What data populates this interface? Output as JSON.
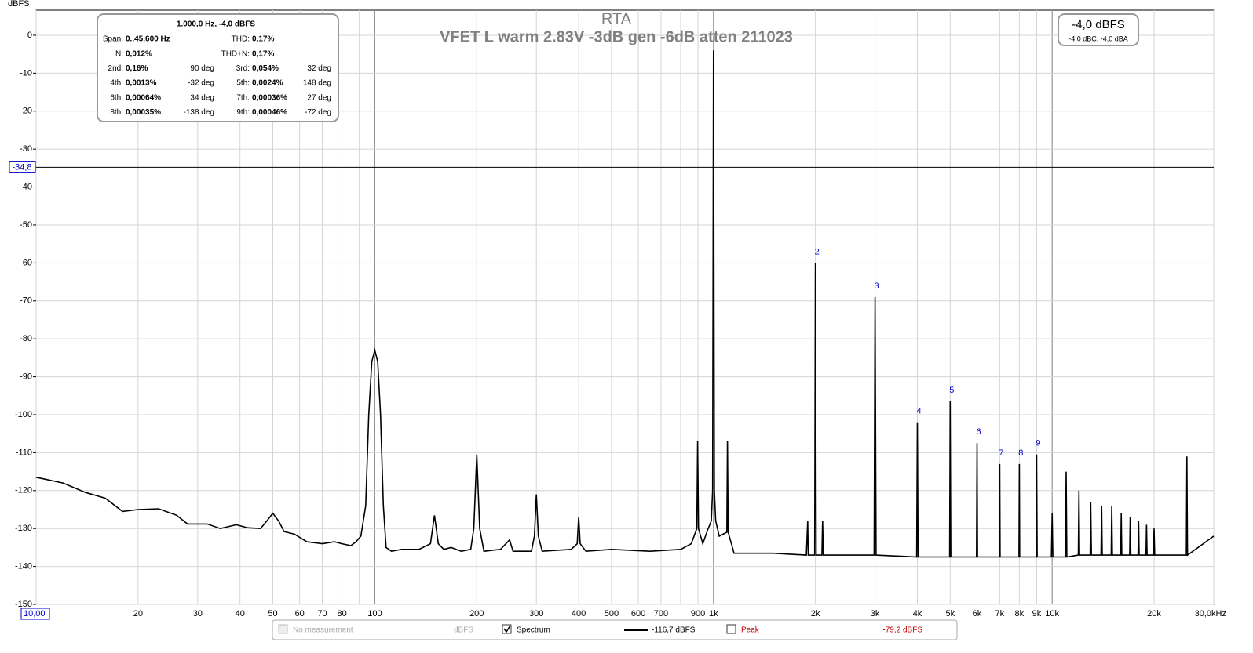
{
  "chart_data": {
    "type": "line",
    "title": "RTA",
    "subtitle": "VFET L warm 2.83V -3dB gen -6dB atten 211023",
    "y_label": "dBFS",
    "x_scale": "log",
    "xlim": [
      10,
      30000
    ],
    "ylim": [
      -150,
      6.6
    ],
    "xticks": [
      {
        "value": 10,
        "label": "10,00"
      },
      20,
      30,
      40,
      50,
      60,
      70,
      80,
      100,
      200,
      300,
      400,
      500,
      600,
      700,
      900,
      {
        "value": 1000,
        "label": "1k"
      },
      {
        "value": 2000,
        "label": "2k"
      },
      {
        "value": 3000,
        "label": "3k"
      },
      {
        "value": 4000,
        "label": "4k"
      },
      {
        "value": 5000,
        "label": "5k"
      },
      {
        "value": 6000,
        "label": "6k"
      },
      {
        "value": 7000,
        "label": "7k"
      },
      {
        "value": 8000,
        "label": "8k"
      },
      {
        "value": 9000,
        "label": "9k"
      },
      {
        "value": 10000,
        "label": "10k"
      },
      {
        "value": 20000,
        "label": "20k"
      },
      {
        "value": 30000,
        "label": "30,0kHz"
      }
    ],
    "xticks_minor": [
      90,
      800
    ],
    "decade_lines": [
      100,
      1000,
      10000
    ],
    "yticks": [
      0,
      -10,
      -20,
      -30,
      -40,
      -50,
      -60,
      -70,
      -80,
      -90,
      -100,
      -110,
      -120,
      -130,
      -140,
      -150
    ],
    "grid": true,
    "cursor": {
      "value": -34.8,
      "label": "-34,8"
    },
    "series": [
      {
        "name": "Spectrum",
        "color": "#000000",
        "x": [
          10,
          12,
          14,
          16,
          18,
          20,
          23,
          26,
          28,
          32,
          35,
          39,
          42,
          46,
          48,
          50,
          52,
          54,
          58,
          63,
          70,
          76,
          80,
          85,
          88,
          91,
          94,
          96,
          98,
          100,
          102,
          104,
          106,
          108,
          112,
          120,
          135,
          146,
          150,
          154,
          160,
          168,
          180,
          192,
          196,
          200,
          204,
          210,
          235,
          250,
          256,
          290,
          296,
          300,
          304,
          312,
          380,
          396,
          400,
          404,
          420,
          500,
          650,
          800,
          860,
          893,
          898,
          903,
          930,
          960,
          985,
          994,
          1000,
          1006,
          1015,
          1040,
          1095,
          1100,
          1105,
          1150,
          1500,
          1880,
          1898,
          1905,
          1990,
          2000,
          2010,
          2090,
          2100,
          2110,
          2980,
          3000,
          3020,
          3980,
          4000,
          4020,
          4980,
          5000,
          5020,
          5980,
          6000,
          6020,
          6980,
          7000,
          7020,
          7980,
          8000,
          8020,
          8980,
          9000,
          9030,
          9950,
          10000,
          10050,
          10950,
          11000,
          11050,
          11950,
          12000,
          12050,
          12950,
          13000,
          13060,
          13940,
          14000,
          14060,
          14940,
          15000,
          15060,
          15940,
          16000,
          16060,
          16940,
          17000,
          17070,
          17930,
          18000,
          18070,
          18930,
          19000,
          19070,
          19920,
          20000,
          20080,
          24900,
          25000,
          25100,
          30000
        ],
        "values": [
          -116.5,
          -118,
          -120.5,
          -122,
          -125.5,
          -125,
          -124.8,
          -126.5,
          -128.8,
          -128.8,
          -130,
          -129,
          -129.8,
          -130,
          -128,
          -126,
          -128,
          -130.8,
          -131.5,
          -133.5,
          -134,
          -133.5,
          -134,
          -134.5,
          -133.5,
          -132,
          -124,
          -100,
          -86,
          -83,
          -86,
          -100,
          -124,
          -135,
          -136,
          -135.5,
          -135.5,
          -134,
          -126.5,
          -134,
          -135.5,
          -135,
          -136,
          -135.5,
          -130,
          -110.5,
          -130,
          -136,
          -135.5,
          -133,
          -136,
          -136,
          -132,
          -121,
          -132,
          -136,
          -135.5,
          -134,
          -127,
          -134,
          -136,
          -135.5,
          -136,
          -135.5,
          -134,
          -130,
          -107,
          -130,
          -134,
          -130.5,
          -128,
          -120,
          -4,
          -120,
          -128,
          -132,
          -131,
          -107,
          -131,
          -136.5,
          -136.5,
          -137,
          -128,
          -137,
          -137,
          -60,
          -137,
          -137,
          -128,
          -137,
          -137,
          -69,
          -137,
          -137.5,
          -102,
          -137.5,
          -137.5,
          -96.5,
          -137.5,
          -137.5,
          -107.5,
          -137.5,
          -137.5,
          -113,
          -137.5,
          -137.5,
          -113,
          -137.5,
          -137.5,
          -110.5,
          -137.5,
          -137.5,
          -126,
          -137.5,
          -137.5,
          -115,
          -137.5,
          -137,
          -120,
          -137,
          -137,
          -123,
          -137,
          -137,
          -124,
          -137,
          -137,
          -124,
          -137,
          -137,
          -126,
          -137,
          -137,
          -127,
          -137,
          -137,
          -128,
          -137,
          -137,
          -129,
          -137,
          -137,
          -130,
          -137,
          -137,
          -111,
          -137,
          -132
        ]
      }
    ],
    "harmonic_markers": [
      {
        "label": "2",
        "x": 2000,
        "value": -60
      },
      {
        "label": "3",
        "x": 3000,
        "value": -69
      },
      {
        "label": "4",
        "x": 4000,
        "value": -102
      },
      {
        "label": "5",
        "x": 5000,
        "value": -96.5
      },
      {
        "label": "6",
        "x": 6000,
        "value": -107.5
      },
      {
        "label": "7",
        "x": 7000,
        "value": -113
      },
      {
        "label": "8",
        "x": 8000,
        "value": -113
      },
      {
        "label": "9",
        "x": 9000,
        "value": -110.5
      }
    ]
  },
  "info_box": {
    "header": "1.000,0 Hz, -4,0 dBFS",
    "rows": [
      [
        "Span:",
        "0..45.600 Hz",
        "THD:",
        "0,17%"
      ],
      [
        "N:",
        "0,012%",
        "THD+N:",
        "0,17%"
      ],
      [
        "2nd:",
        "0,16%",
        "90 deg",
        "3rd:",
        "0,054%",
        "32 deg"
      ],
      [
        "4th:",
        "0,0013%",
        "-32 deg",
        "5th:",
        "0,0024%",
        "148 deg"
      ],
      [
        "6th:",
        "0,00064%",
        "34 deg",
        "7th:",
        "0,00036%",
        "27 deg"
      ],
      [
        "8th:",
        "0,00035%",
        "-138 deg",
        "9th:",
        "0,00046%",
        "-72 deg"
      ]
    ]
  },
  "level_box": {
    "value": "-4,0 dBFS",
    "detail": "-4,0 dBC, -4,0 dBA"
  },
  "legend_bar": {
    "no_measurement": "No measurement",
    "unit": "dBFS",
    "spectrum": "Spectrum",
    "spectrum_level": "-116,7 dBFS",
    "peak": "Peak",
    "peak_level": "-79,2 dBFS"
  }
}
